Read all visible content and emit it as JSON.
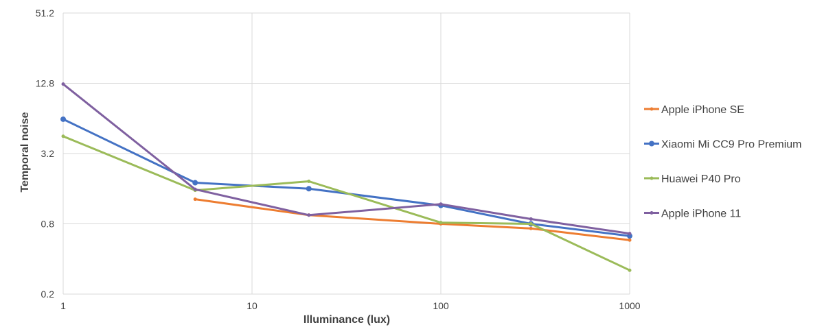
{
  "chart_data": {
    "type": "line",
    "title": "",
    "xlabel": "Illuminance (lux)",
    "ylabel": "Temporal noise",
    "x_scale": "log",
    "y_scale": "log2",
    "xlim": [
      1,
      1000
    ],
    "ylim": [
      0.2,
      51.2
    ],
    "x_ticks": [
      "1",
      "10",
      "100",
      "1000"
    ],
    "y_ticks": [
      "0.2",
      "0.8",
      "3.2",
      "12.8",
      "51.2"
    ],
    "grid": true,
    "legend_position": "right",
    "series": [
      {
        "name": "Apple iPhone SE",
        "color": "#ED7D31",
        "marker": "small",
        "x": [
          5,
          20,
          100,
          300,
          1000
        ],
        "y": [
          1.3,
          0.95,
          0.8,
          0.73,
          0.58
        ]
      },
      {
        "name": "Xiaomi Mi CC9 Pro Premium",
        "color": "#4472C4",
        "marker": "large",
        "x": [
          1,
          5,
          20,
          100,
          300,
          1000
        ],
        "y": [
          6.3,
          1.8,
          1.6,
          1.15,
          0.8,
          0.63
        ]
      },
      {
        "name": "Huawei P40 Pro",
        "color": "#9BBB59",
        "marker": "small",
        "x": [
          1,
          5,
          20,
          100,
          300,
          1000
        ],
        "y": [
          4.5,
          1.55,
          1.85,
          0.82,
          0.8,
          0.32
        ]
      },
      {
        "name": "Apple iPhone 11",
        "color": "#7F60A0",
        "marker": "small",
        "x": [
          1,
          5,
          20,
          100,
          300,
          1000
        ],
        "y": [
          12.6,
          1.58,
          0.95,
          1.18,
          0.88,
          0.66
        ]
      }
    ]
  }
}
